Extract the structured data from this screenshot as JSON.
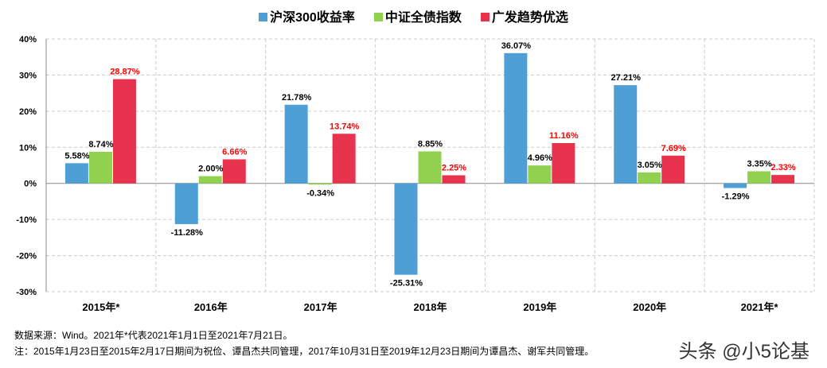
{
  "chart_data": {
    "type": "bar",
    "categories": [
      "2015年*",
      "2016年",
      "2017年",
      "2018年",
      "2019年",
      "2020年",
      "2021年*"
    ],
    "series": [
      {
        "name": "沪深300收益率",
        "color": "#4f9fd7",
        "values": [
          5.58,
          -11.28,
          21.78,
          -25.31,
          36.07,
          27.21,
          -1.29
        ],
        "labels": [
          "5.58%",
          "-11.28%",
          "21.78%",
          "-25.31%",
          "36.07%",
          "27.21%",
          "-1.29%"
        ],
        "label_color": "#000000"
      },
      {
        "name": "中证全债指数",
        "color": "#92d050",
        "values": [
          8.74,
          2.0,
          -0.34,
          8.85,
          4.96,
          3.05,
          3.35
        ],
        "labels": [
          "8.74%",
          "2.00%",
          "-0.34%",
          "8.85%",
          "4.96%",
          "3.05%",
          "3.35%"
        ],
        "label_color": "#000000"
      },
      {
        "name": "广发趋势优选",
        "color": "#e8334f",
        "values": [
          28.87,
          6.66,
          13.74,
          2.25,
          11.16,
          7.69,
          2.33
        ],
        "labels": [
          "28.87%",
          "6.66%",
          "13.74%",
          "2.25%",
          "11.16%",
          "7.69%",
          "2.33%"
        ],
        "label_color": "#ff0000"
      }
    ],
    "ylim": [
      -30,
      40
    ],
    "yticks": [
      "-30%",
      "-20%",
      "-10%",
      "0%",
      "10%",
      "20%",
      "30%",
      "40%"
    ],
    "grid": true,
    "legend": "top"
  },
  "notes": {
    "source": "数据来源：Wind。2021年*代表2021年1月1日至2021年7月21日。",
    "note": "注：2015年1月23日至2015年2月17日期间为祝俭、谭昌杰共同管理，2017年10月31日至2019年12月23日期间为谭昌杰、谢军共同管理。"
  },
  "watermark": "头条 @小5论基"
}
